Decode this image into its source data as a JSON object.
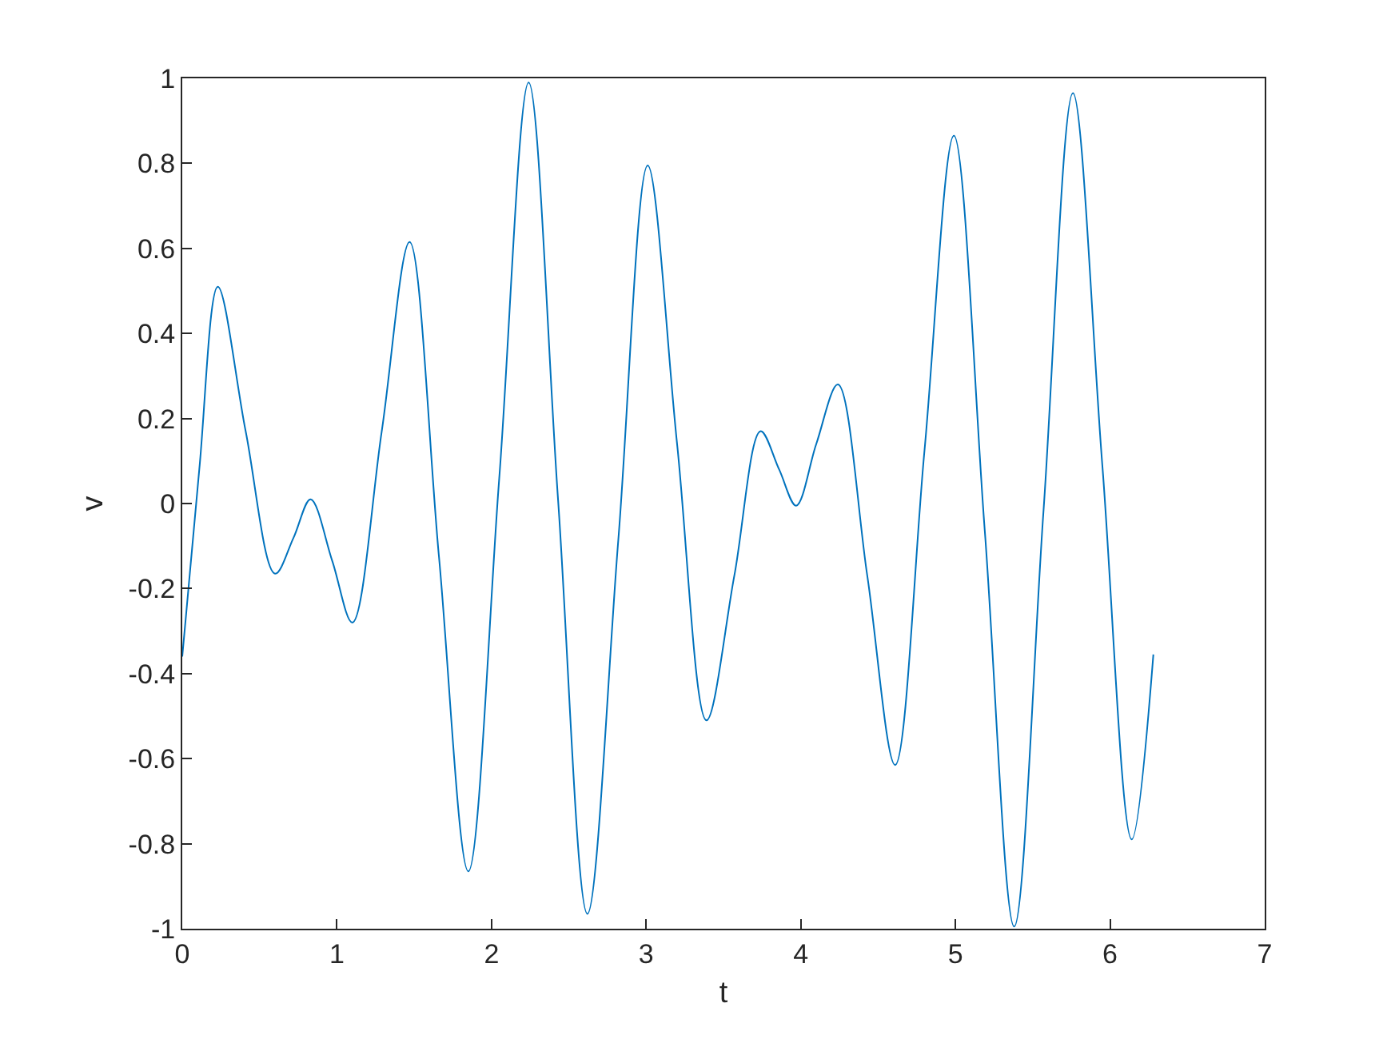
{
  "chart_data": {
    "type": "line",
    "xlabel": "t",
    "ylabel": "v",
    "xlim": [
      0,
      7
    ],
    "xticks": [
      0,
      1,
      2,
      3,
      4,
      5,
      6,
      7
    ],
    "ylim": [
      -1,
      1
    ],
    "yticks": [
      -1,
      -0.8,
      -0.6,
      -0.4,
      -0.2,
      0,
      0.2,
      0.4,
      0.6,
      0.8,
      1
    ],
    "marker": "none",
    "line_style": "solid",
    "series": [
      {
        "color": "#0072bd",
        "x": [
          0,
          0.11,
          0.23,
          0.41,
          0.6,
          0.72,
          0.83,
          0.97,
          1.1,
          1.29,
          1.47,
          1.66,
          1.85,
          2.05,
          2.24,
          2.43,
          2.62,
          2.82,
          3.01,
          3.2,
          3.39,
          3.57,
          3.74,
          3.86,
          3.97,
          4.1,
          4.24,
          4.43,
          4.61,
          4.8,
          4.99,
          5.19,
          5.38,
          5.57,
          5.76,
          5.95,
          6.14,
          6.28
        ],
        "values": [
          -0.36,
          0.08,
          0.51,
          0.17,
          -0.165,
          -0.08,
          0.01,
          -0.135,
          -0.28,
          0.17,
          0.615,
          -0.125,
          -0.865,
          0.06,
          0.99,
          0.01,
          -0.965,
          -0.085,
          0.795,
          0.14,
          -0.51,
          -0.17,
          0.17,
          0.08,
          -0.005,
          0.14,
          0.28,
          -0.17,
          -0.615,
          0.125,
          0.865,
          -0.065,
          -0.995,
          -0.015,
          0.965,
          0.09,
          -0.79,
          -0.355
        ]
      }
    ]
  }
}
